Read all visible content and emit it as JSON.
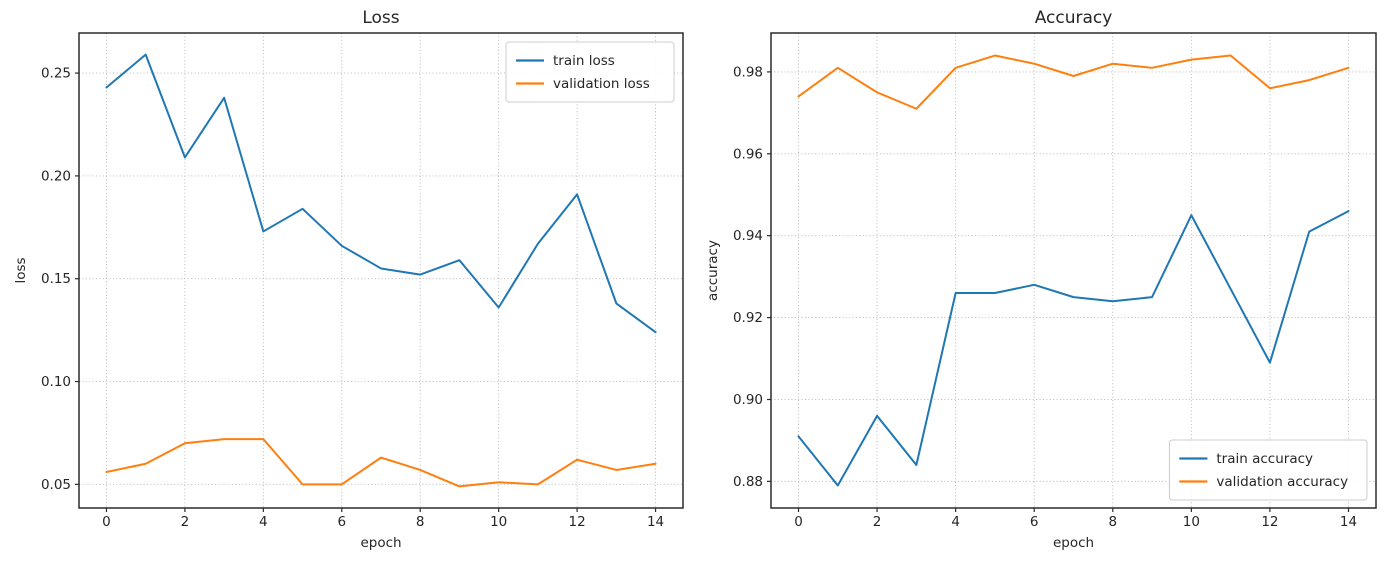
{
  "figure": {
    "background": "#ffffff",
    "description": "matplotlib-style training curves figure with two subplots"
  },
  "style": {
    "grid_color": "#b0b0b0",
    "spine_color": "#2b2b2b",
    "text_color": "#262626",
    "legend_border": "#cccccc",
    "legend_background": "#ffffff",
    "series_blue": "#1f77b4",
    "series_orange": "#ff7f0e"
  },
  "chart_data": [
    {
      "type": "line",
      "title": "Loss",
      "xlabel": "epoch",
      "ylabel": "loss",
      "grid": true,
      "x": [
        0,
        1,
        2,
        3,
        4,
        5,
        6,
        7,
        8,
        9,
        10,
        11,
        12,
        13,
        14
      ],
      "xlim": [
        -0.7,
        14.7
      ],
      "ylim": [
        0.0385,
        0.2695
      ],
      "xticks": {
        "values": [
          0,
          2,
          4,
          6,
          8,
          10,
          12,
          14
        ],
        "labels": [
          "0",
          "2",
          "4",
          "6",
          "8",
          "10",
          "12",
          "14"
        ]
      },
      "yticks": {
        "values": [
          0.05,
          0.1,
          0.15,
          0.2,
          0.25
        ],
        "labels": [
          "0.05",
          "0.10",
          "0.15",
          "0.20",
          "0.25"
        ]
      },
      "legend": {
        "loc": "upper-right"
      },
      "series": [
        {
          "name": "train loss",
          "color": "#1f77b4",
          "values": [
            0.243,
            0.259,
            0.209,
            0.238,
            0.173,
            0.184,
            0.166,
            0.155,
            0.152,
            0.159,
            0.136,
            0.167,
            0.191,
            0.138,
            0.124
          ]
        },
        {
          "name": "validation loss",
          "color": "#ff7f0e",
          "values": [
            0.056,
            0.06,
            0.07,
            0.072,
            0.072,
            0.05,
            0.05,
            0.063,
            0.057,
            0.049,
            0.051,
            0.05,
            0.062,
            0.057,
            0.06
          ]
        }
      ]
    },
    {
      "type": "line",
      "title": "Accuracy",
      "xlabel": "epoch",
      "ylabel": "accuracy",
      "grid": true,
      "x": [
        0,
        1,
        2,
        3,
        4,
        5,
        6,
        7,
        8,
        9,
        10,
        11,
        12,
        13,
        14
      ],
      "xlim": [
        -0.7,
        14.7
      ],
      "ylim": [
        0.8735,
        0.9895
      ],
      "xticks": {
        "values": [
          0,
          2,
          4,
          6,
          8,
          10,
          12,
          14
        ],
        "labels": [
          "0",
          "2",
          "4",
          "6",
          "8",
          "10",
          "12",
          "14"
        ]
      },
      "yticks": {
        "values": [
          0.88,
          0.9,
          0.92,
          0.94,
          0.96,
          0.98
        ],
        "labels": [
          "0.88",
          "0.90",
          "0.92",
          "0.94",
          "0.96",
          "0.98"
        ]
      },
      "legend": {
        "loc": "lower-right"
      },
      "series": [
        {
          "name": "train accuracy",
          "color": "#1f77b4",
          "values": [
            0.891,
            0.879,
            0.896,
            0.884,
            0.926,
            0.926,
            0.928,
            0.925,
            0.924,
            0.925,
            0.945,
            0.927,
            0.909,
            0.941,
            0.946
          ]
        },
        {
          "name": "validation accuracy",
          "color": "#ff7f0e",
          "values": [
            0.974,
            0.981,
            0.975,
            0.971,
            0.981,
            0.984,
            0.982,
            0.979,
            0.982,
            0.981,
            0.983,
            0.984,
            0.976,
            0.978,
            0.981
          ]
        }
      ]
    }
  ]
}
